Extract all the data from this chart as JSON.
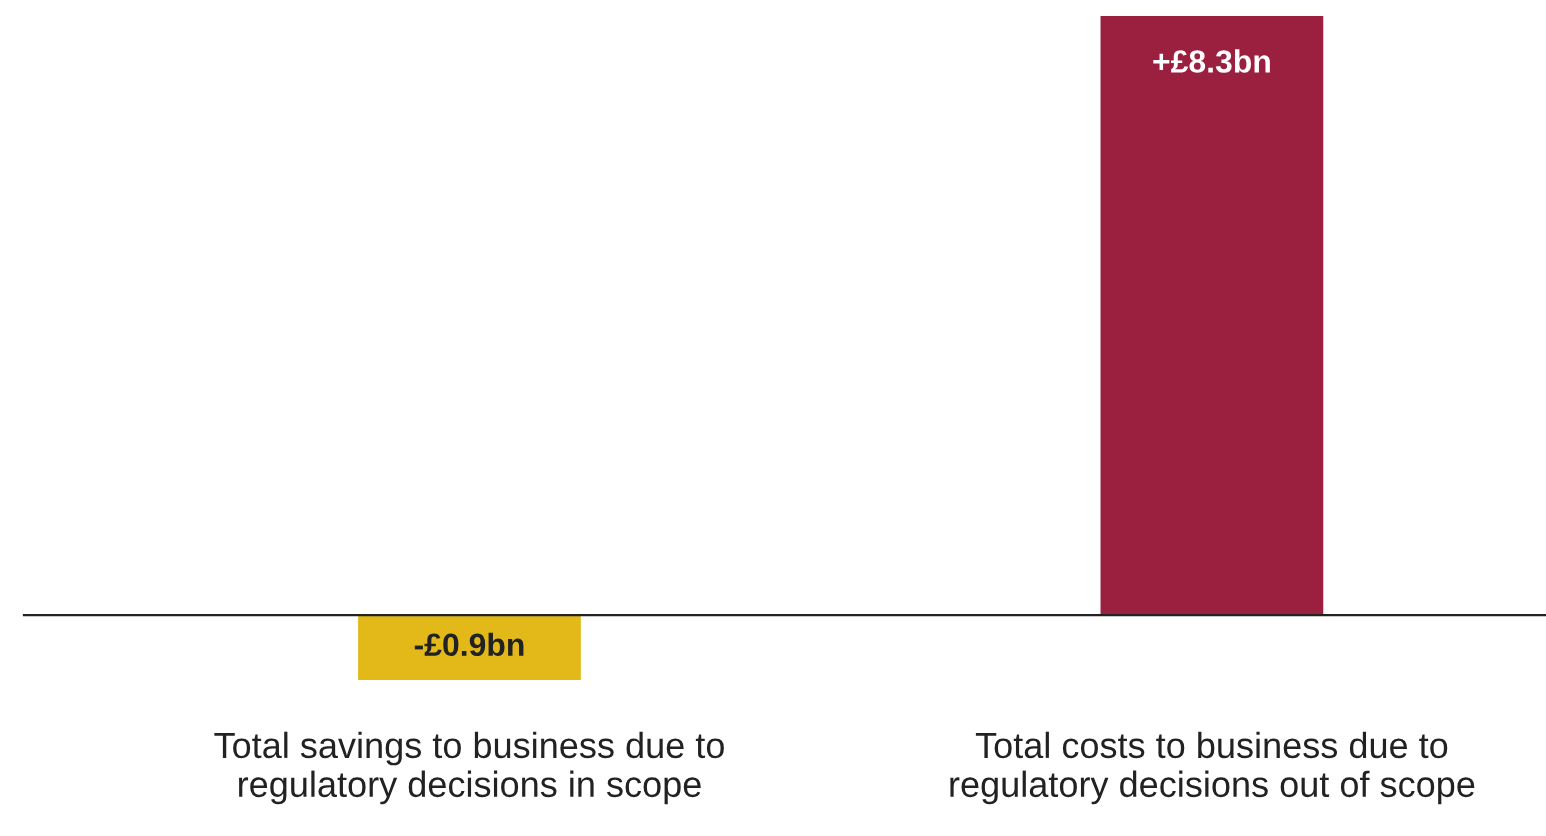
{
  "chart_data": {
    "type": "bar",
    "categories": [
      "Total savings to business due to\nregulatory decisions in scope",
      "Total costs to business due to\nregulatory decisions out of scope"
    ],
    "values": [
      -0.9,
      8.3
    ],
    "colors": [
      "#e2b918",
      "#9b2040"
    ],
    "value_labels": [
      "-£0.9bn",
      "+£8.3bn"
    ],
    "grid": false,
    "legend": false
  }
}
